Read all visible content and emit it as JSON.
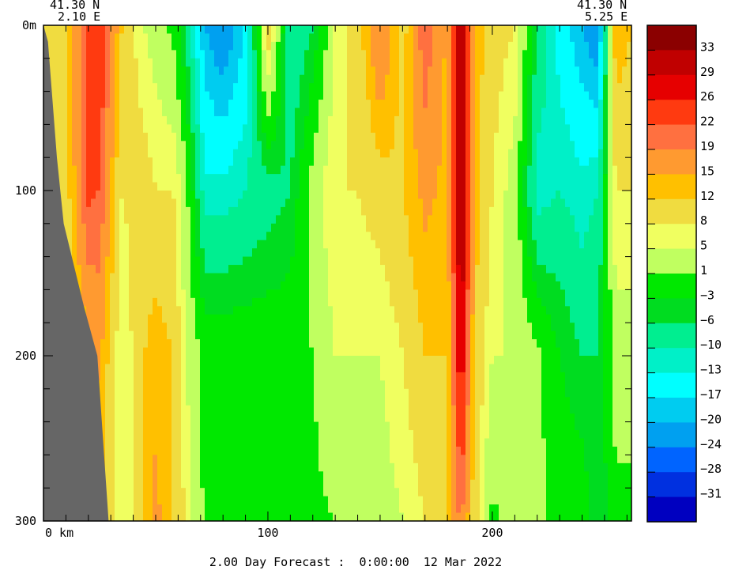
{
  "chart_data": {
    "type": "heatmap",
    "corner_left": {
      "lat": "41.30 N",
      "lon": "2.10 E"
    },
    "corner_right": {
      "lat": "41.30 N",
      "lon": "5.25 E"
    },
    "y_axis": {
      "ticks": [
        0,
        100,
        200,
        300
      ],
      "tick_labels": [
        "0m",
        "100",
        "200",
        "300"
      ],
      "range": [
        0,
        300
      ],
      "inverted": true
    },
    "x_axis": {
      "ticks": [
        0,
        100,
        200
      ],
      "tick_labels": [
        "0 km",
        "100",
        "200"
      ],
      "range": [
        0,
        262
      ]
    },
    "colorbar": {
      "labels": [
        "33",
        "29",
        "26",
        "22",
        "19",
        "15",
        "12",
        "8",
        "5",
        "1",
        "−3",
        "−6",
        "−10",
        "−13",
        "−17",
        "−20",
        "−24",
        "−28",
        "−31"
      ],
      "colors": [
        "#8b0000",
        "#c00000",
        "#e60000",
        "#ff3a10",
        "#ff7040",
        "#ff9a30",
        "#ffc000",
        "#f0dc40",
        "#f0ff60",
        "#c0ff60",
        "#00e800",
        "#00dc20",
        "#00ee90",
        "#00f0c8",
        "#00ffff",
        "#00ccf0",
        "#00a0f0",
        "#0064ff",
        "#0030e0",
        "#0000c0"
      ]
    },
    "land_color": "#666666",
    "columns": [
      {
        "x": 3,
        "values": [
          8,
          8,
          8,
          8
        ]
      },
      {
        "x": 10,
        "values": [
          12,
          10,
          8,
          5
        ]
      },
      {
        "x": 20,
        "values": [
          22,
          23,
          14,
          8
        ]
      },
      {
        "x": 25,
        "values": [
          26,
          22,
          16,
          12
        ]
      },
      {
        "x": 35,
        "values": [
          12,
          8,
          5,
          5
        ]
      },
      {
        "x": 45,
        "values": [
          5,
          10,
          12,
          12
        ]
      },
      {
        "x": 50,
        "values": [
          3,
          8,
          14,
          16
        ]
      },
      {
        "x": 58,
        "values": [
          0,
          8,
          12,
          12
        ]
      },
      {
        "x": 63,
        "values": [
          -6,
          3,
          5,
          8
        ]
      },
      {
        "x": 72,
        "values": [
          -20,
          -12,
          0,
          0
        ]
      },
      {
        "x": 80,
        "values": [
          -24,
          -12,
          0,
          0
        ]
      },
      {
        "x": 90,
        "values": [
          -17,
          -10,
          0,
          0
        ]
      },
      {
        "x": 100,
        "values": [
          12,
          -8,
          0,
          0
        ]
      },
      {
        "x": 110,
        "values": [
          -10,
          -6,
          0,
          0
        ]
      },
      {
        "x": 120,
        "values": [
          -6,
          3,
          1,
          0
        ]
      },
      {
        "x": 130,
        "values": [
          5,
          8,
          5,
          1
        ]
      },
      {
        "x": 140,
        "values": [
          10,
          8,
          5,
          3
        ]
      },
      {
        "x": 150,
        "values": [
          20,
          10,
          5,
          3
        ]
      },
      {
        "x": 160,
        "values": [
          10,
          12,
          8,
          5
        ]
      },
      {
        "x": 170,
        "values": [
          22,
          16,
          12,
          8
        ]
      },
      {
        "x": 180,
        "values": [
          14,
          14,
          12,
          12
        ]
      },
      {
        "x": 186,
        "values": [
          35,
          35,
          30,
          20
        ]
      },
      {
        "x": 192,
        "values": [
          14,
          14,
          12,
          10
        ]
      },
      {
        "x": 200,
        "values": [
          10,
          8,
          5,
          0
        ]
      },
      {
        "x": 210,
        "values": [
          8,
          3,
          5,
          3
        ]
      },
      {
        "x": 220,
        "values": [
          -6,
          -12,
          2,
          2
        ]
      },
      {
        "x": 230,
        "values": [
          -15,
          -10,
          -3,
          0
        ]
      },
      {
        "x": 240,
        "values": [
          -20,
          -12,
          -6,
          0
        ]
      },
      {
        "x": 247,
        "values": [
          -24,
          -10,
          -6,
          -6
        ]
      },
      {
        "x": 255,
        "values": [
          15,
          8,
          3,
          0
        ]
      },
      {
        "x": 262,
        "values": [
          12,
          8,
          3,
          0
        ]
      }
    ],
    "land_profile": [
      {
        "depth": 0,
        "x_at_surface": 0
      },
      {
        "depth": 10,
        "x_edge": 2
      },
      {
        "depth": 80,
        "x_edge": 6
      },
      {
        "depth": 120,
        "x_edge": 9
      },
      {
        "depth": 170,
        "x_edge": 18
      },
      {
        "depth": 200,
        "x_edge": 24
      },
      {
        "depth": 260,
        "x_edge": 27
      },
      {
        "depth": 300,
        "x_edge": 29
      }
    ]
  },
  "footer": "2.00 Day Forecast :  0:00:00  12 Mar 2022"
}
